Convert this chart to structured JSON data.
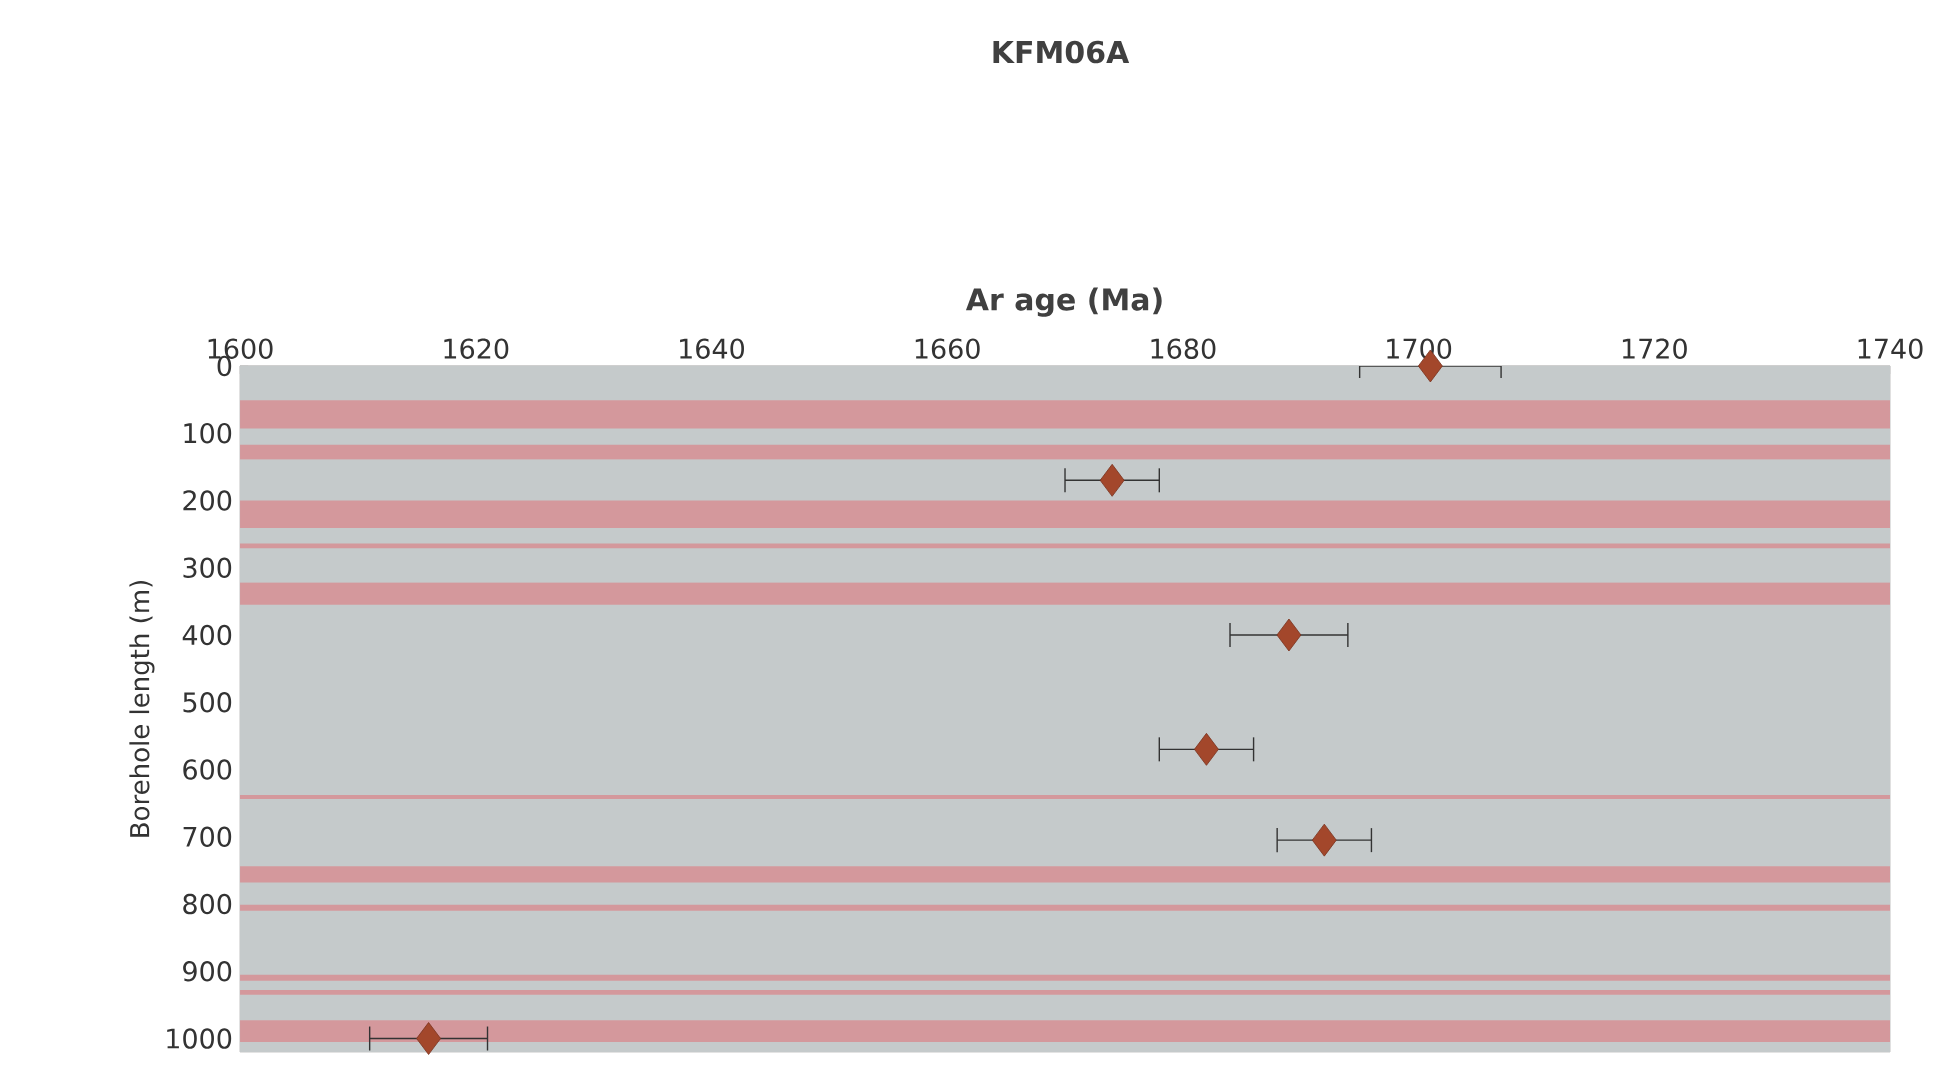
{
  "chart_data": {
    "type": "scatter",
    "title": "KFM06A",
    "xlabel": "Ar age (Ma)",
    "ylabel": "Borehole length (m)",
    "xlim": [
      1600,
      1740
    ],
    "xticks": [
      1600,
      1620,
      1640,
      1660,
      1680,
      1700,
      1720,
      1740
    ],
    "ylim": [
      1020,
      0
    ],
    "yticks": [
      0,
      100,
      200,
      300,
      400,
      500,
      600,
      700,
      800,
      900,
      1000
    ],
    "grid": "y",
    "marker": "diamond",
    "series": [
      {
        "color": "#a3472b",
        "x": [
          1701,
          1674,
          1689,
          1682,
          1692,
          1616
        ],
        "values": [
          0,
          170,
          400,
          570,
          705,
          1000
        ],
        "xerrors": [
          6,
          4,
          5,
          4,
          4,
          5
        ]
      }
    ],
    "bands": [
      {
        "axis": "y",
        "from": 51,
        "to": 93,
        "color": "#d4989c"
      },
      {
        "axis": "y",
        "from": 117,
        "to": 139,
        "color": "#d4989c"
      },
      {
        "axis": "y",
        "from": 200,
        "to": 241,
        "color": "#d4989c"
      },
      {
        "axis": "y",
        "from": 264,
        "to": 271,
        "color": "#d4989c"
      },
      {
        "axis": "y",
        "from": 322,
        "to": 355,
        "color": "#d4989c"
      },
      {
        "axis": "y",
        "from": 638,
        "to": 644,
        "color": "#d4989c"
      },
      {
        "axis": "y",
        "from": 744,
        "to": 768,
        "color": "#d4989c"
      },
      {
        "axis": "y",
        "from": 801,
        "to": 810,
        "color": "#d4989c"
      },
      {
        "axis": "y",
        "from": 905,
        "to": 914,
        "color": "#d4989c"
      },
      {
        "axis": "y",
        "from": 928,
        "to": 935,
        "color": "#d4989c"
      },
      {
        "axis": "y",
        "from": 973,
        "to": 1005,
        "color": "#d4989c"
      }
    ]
  }
}
